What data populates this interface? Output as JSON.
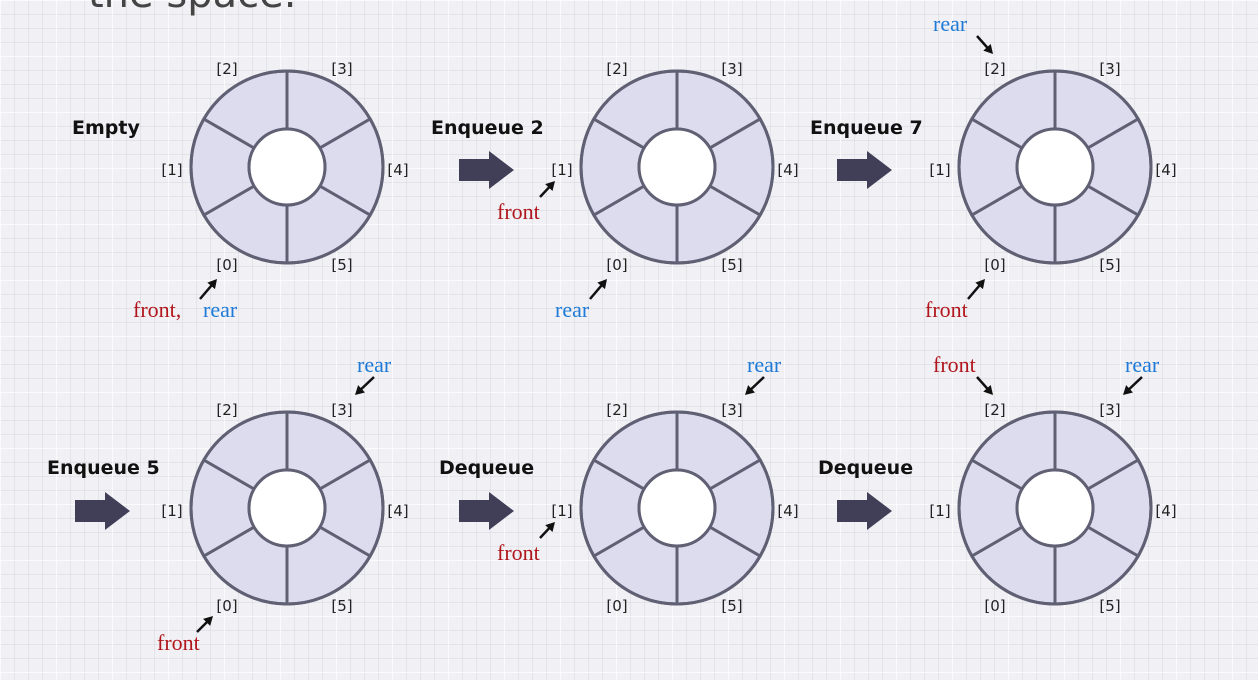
{
  "slide": {
    "title": "the space."
  },
  "queue": {
    "slot_indices": [
      "[0]",
      "[1]",
      "[2]",
      "[3]",
      "[4]",
      "[5]"
    ],
    "pointer_labels": {
      "front": "front",
      "rear": "rear"
    },
    "separator": ",",
    "stages": [
      {
        "label": "Empty",
        "front_slot": 0,
        "rear_slot": 0
      },
      {
        "label": "Enqueue 2",
        "front_slot": 1,
        "rear_slot": 0
      },
      {
        "label": "Enqueue 7",
        "front_slot": 0,
        "rear_slot": 2
      },
      {
        "label": "Enqueue 5",
        "front_slot": 0,
        "rear_slot": 3
      },
      {
        "label": "Dequeue",
        "front_slot": 1,
        "rear_slot": 3
      },
      {
        "label": "Dequeue",
        "front_slot": 2,
        "rear_slot": 3
      }
    ]
  },
  "colors": {
    "front": "#b0161c",
    "rear": "#1e7ad6",
    "slot_fill": "#dcdcee",
    "slot_stroke": "#606074",
    "flow_arrow": "#413f58"
  },
  "icons": {
    "flow_arrow": "right-arrow-icon",
    "pointer_arrow": "pointer-arrow-icon"
  }
}
